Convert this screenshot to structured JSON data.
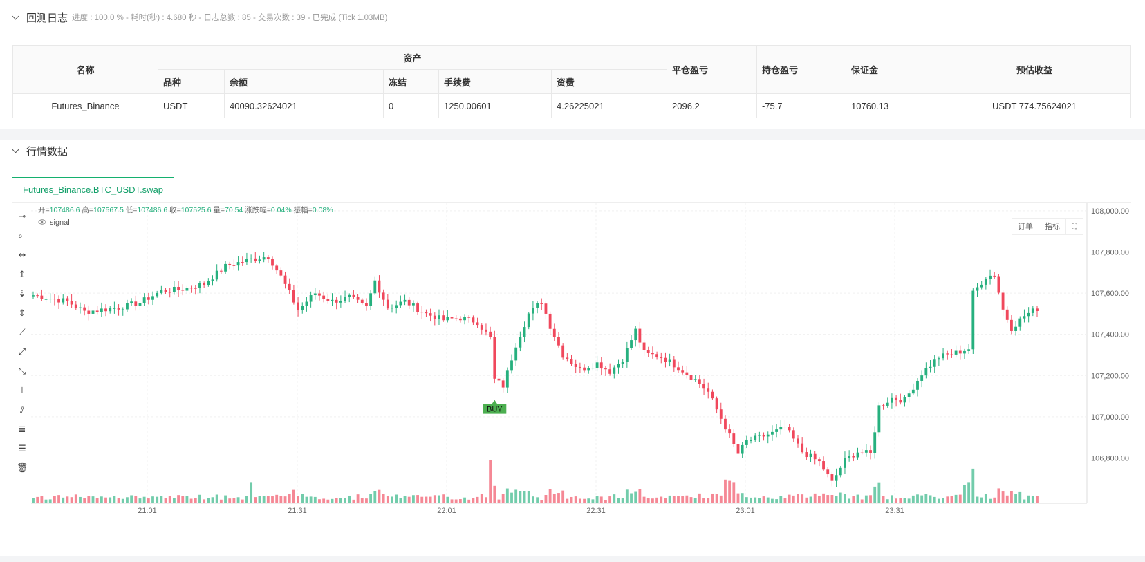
{
  "log": {
    "title": "回测日志",
    "summary": "进度 : 100.0 % - 耗时(秒) : 4.680  秒 - 日志总数 : 85 - 交易次数 : 39 - 已完成 (Tick 1.03MB)"
  },
  "assets_table": {
    "headers": {
      "name": "名称",
      "assets": "资产",
      "symbol": "品种",
      "balance": "余额",
      "frozen": "冻结",
      "fee": "手续费",
      "funding": "资费",
      "closed_pnl": "平仓盈亏",
      "position_pnl": "持仓盈亏",
      "margin": "保证金",
      "est_profit": "预估收益"
    },
    "row": {
      "name": "Futures_Binance",
      "symbol": "USDT",
      "balance": "40090.32624021",
      "frozen": "0",
      "fee": "1250.00601",
      "funding": "4.26225021",
      "closed_pnl": "2096.2",
      "position_pnl": "-75.7",
      "margin": "10760.13",
      "est_profit": "USDT 774.75624021"
    }
  },
  "market": {
    "title": "行情数据",
    "tab": "Futures_Binance.BTC_USDT.swap",
    "buttons": {
      "orders": "订单",
      "indicators": "指标"
    }
  },
  "chart_data": {
    "type": "candlestick",
    "ohlc_info": {
      "open_label": "开=",
      "open": "107486.6",
      "high_label": "高=",
      "high": "107567.5",
      "low_label": "低=",
      "low": "107486.6",
      "close_label": "收=",
      "close": "107525.6",
      "vol_label": "量=",
      "vol": "70.54",
      "chg_label": "涨跌幅=",
      "chg": "0.04%",
      "amp_label": "振幅=",
      "amp": "0.08%"
    },
    "indicator_name": "signal",
    "signal_label": "BUY",
    "y_ticks": [
      "108,000.00",
      "107,800.00",
      "107,600.00",
      "107,400.00",
      "107,200.00",
      "107,000.00",
      "106,800.00"
    ],
    "x_ticks": [
      "21:01",
      "21:31",
      "22:01",
      "22:31",
      "23:01",
      "23:31"
    ],
    "ylim": [
      106580,
      108040
    ],
    "up_color": "#26b07e",
    "down_color": "#f0485c",
    "anchors": [
      [
        0,
        107590
      ],
      [
        8,
        107560
      ],
      [
        12,
        107510
      ],
      [
        20,
        107530
      ],
      [
        25,
        107555
      ],
      [
        30,
        107610
      ],
      [
        35,
        107620
      ],
      [
        40,
        107645
      ],
      [
        45,
        107730
      ],
      [
        50,
        107760
      ],
      [
        55,
        107780
      ],
      [
        58,
        107680
      ],
      [
        62,
        107520
      ],
      [
        66,
        107600
      ],
      [
        70,
        107560
      ],
      [
        74,
        107580
      ],
      [
        78,
        107530
      ],
      [
        80,
        107660
      ],
      [
        83,
        107530
      ],
      [
        87,
        107560
      ],
      [
        92,
        107500
      ],
      [
        96,
        107470
      ],
      [
        100,
        107480
      ],
      [
        104,
        107460
      ],
      [
        107,
        107380
      ],
      [
        108,
        107180
      ],
      [
        110,
        107150
      ],
      [
        113,
        107350
      ],
      [
        116,
        107500
      ],
      [
        119,
        107560
      ],
      [
        121,
        107440
      ],
      [
        124,
        107300
      ],
      [
        128,
        107230
      ],
      [
        132,
        107260
      ],
      [
        135,
        107220
      ],
      [
        138,
        107280
      ],
      [
        141,
        107420
      ],
      [
        143,
        107310
      ],
      [
        147,
        107290
      ],
      [
        151,
        107240
      ],
      [
        155,
        107180
      ],
      [
        158,
        107120
      ],
      [
        162,
        106950
      ],
      [
        165,
        106820
      ],
      [
        167,
        106880
      ],
      [
        170,
        106900
      ],
      [
        173,
        106920
      ],
      [
        176,
        106950
      ],
      [
        180,
        106830
      ],
      [
        184,
        106780
      ],
      [
        187,
        106680
      ],
      [
        190,
        106790
      ],
      [
        193,
        106830
      ],
      [
        196,
        106820
      ],
      [
        198,
        107050
      ],
      [
        201,
        107090
      ],
      [
        204,
        107080
      ],
      [
        208,
        107210
      ],
      [
        212,
        107290
      ],
      [
        216,
        107310
      ],
      [
        219,
        107330
      ],
      [
        220,
        107600
      ],
      [
        223,
        107680
      ],
      [
        225,
        107690
      ],
      [
        227,
        107520
      ],
      [
        229,
        107430
      ],
      [
        232,
        107490
      ],
      [
        235,
        107525
      ]
    ],
    "volume_scale": {
      "base": 4,
      "spikes": [
        [
          51,
          34
        ],
        [
          107,
          70
        ],
        [
          108,
          28
        ],
        [
          162,
          38
        ],
        [
          163,
          36
        ],
        [
          164,
          34
        ],
        [
          218,
          30
        ],
        [
          219,
          34
        ]
      ]
    }
  }
}
